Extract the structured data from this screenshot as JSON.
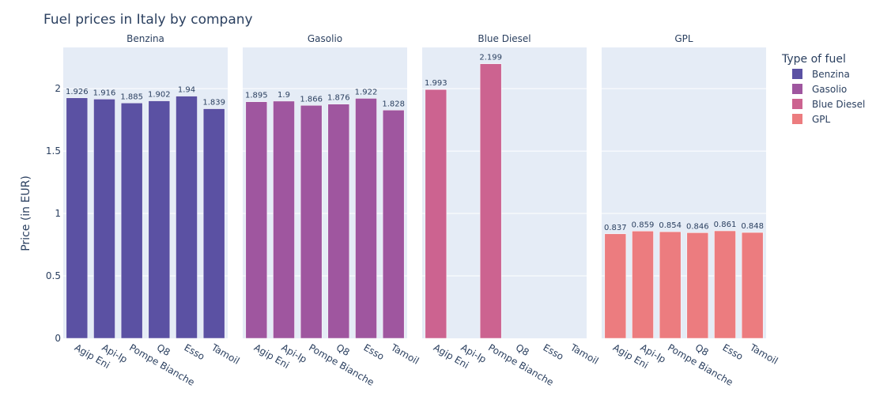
{
  "chart_data": {
    "type": "bar",
    "title": "Fuel prices in Italy by company",
    "ylabel": "Price (in EUR)",
    "xlabel": "",
    "ylim": [
      0,
      2.33
    ],
    "yticks": [
      0,
      0.5,
      1,
      1.5,
      2
    ],
    "ytick_labels": [
      "0",
      "0.5",
      "1",
      "1.5",
      "2"
    ],
    "grid": true,
    "legend_title": "Type of fuel",
    "legend_position": "top-right",
    "categories": [
      "Agip Eni",
      "Api-Ip",
      "Pompe Bianche",
      "Q8",
      "Esso",
      "Tamoil"
    ],
    "facets": [
      {
        "name": "Benzina",
        "color": "#5b51a3",
        "values": [
          1.926,
          1.916,
          1.885,
          1.902,
          1.94,
          1.839
        ],
        "labels": [
          "1.926",
          "1.916",
          "1.885",
          "1.902",
          "1.94",
          "1.839"
        ]
      },
      {
        "name": "Gasolio",
        "color": "#9f569f",
        "values": [
          1.895,
          1.9,
          1.866,
          1.876,
          1.922,
          1.828
        ],
        "labels": [
          "1.895",
          "1.9",
          "1.866",
          "1.876",
          "1.922",
          "1.828"
        ]
      },
      {
        "name": "Blue Diesel",
        "color": "#cc6390",
        "values": [
          1.993,
          null,
          2.199,
          null,
          null,
          null
        ],
        "labels": [
          "1.993",
          "",
          "2.199",
          "",
          "",
          ""
        ]
      },
      {
        "name": "GPL",
        "color": "#ec7c7f",
        "values": [
          0.837,
          0.859,
          0.854,
          0.846,
          0.861,
          0.848
        ],
        "labels": [
          "0.837",
          "0.859",
          "0.854",
          "0.846",
          "0.861",
          "0.848"
        ]
      }
    ]
  }
}
